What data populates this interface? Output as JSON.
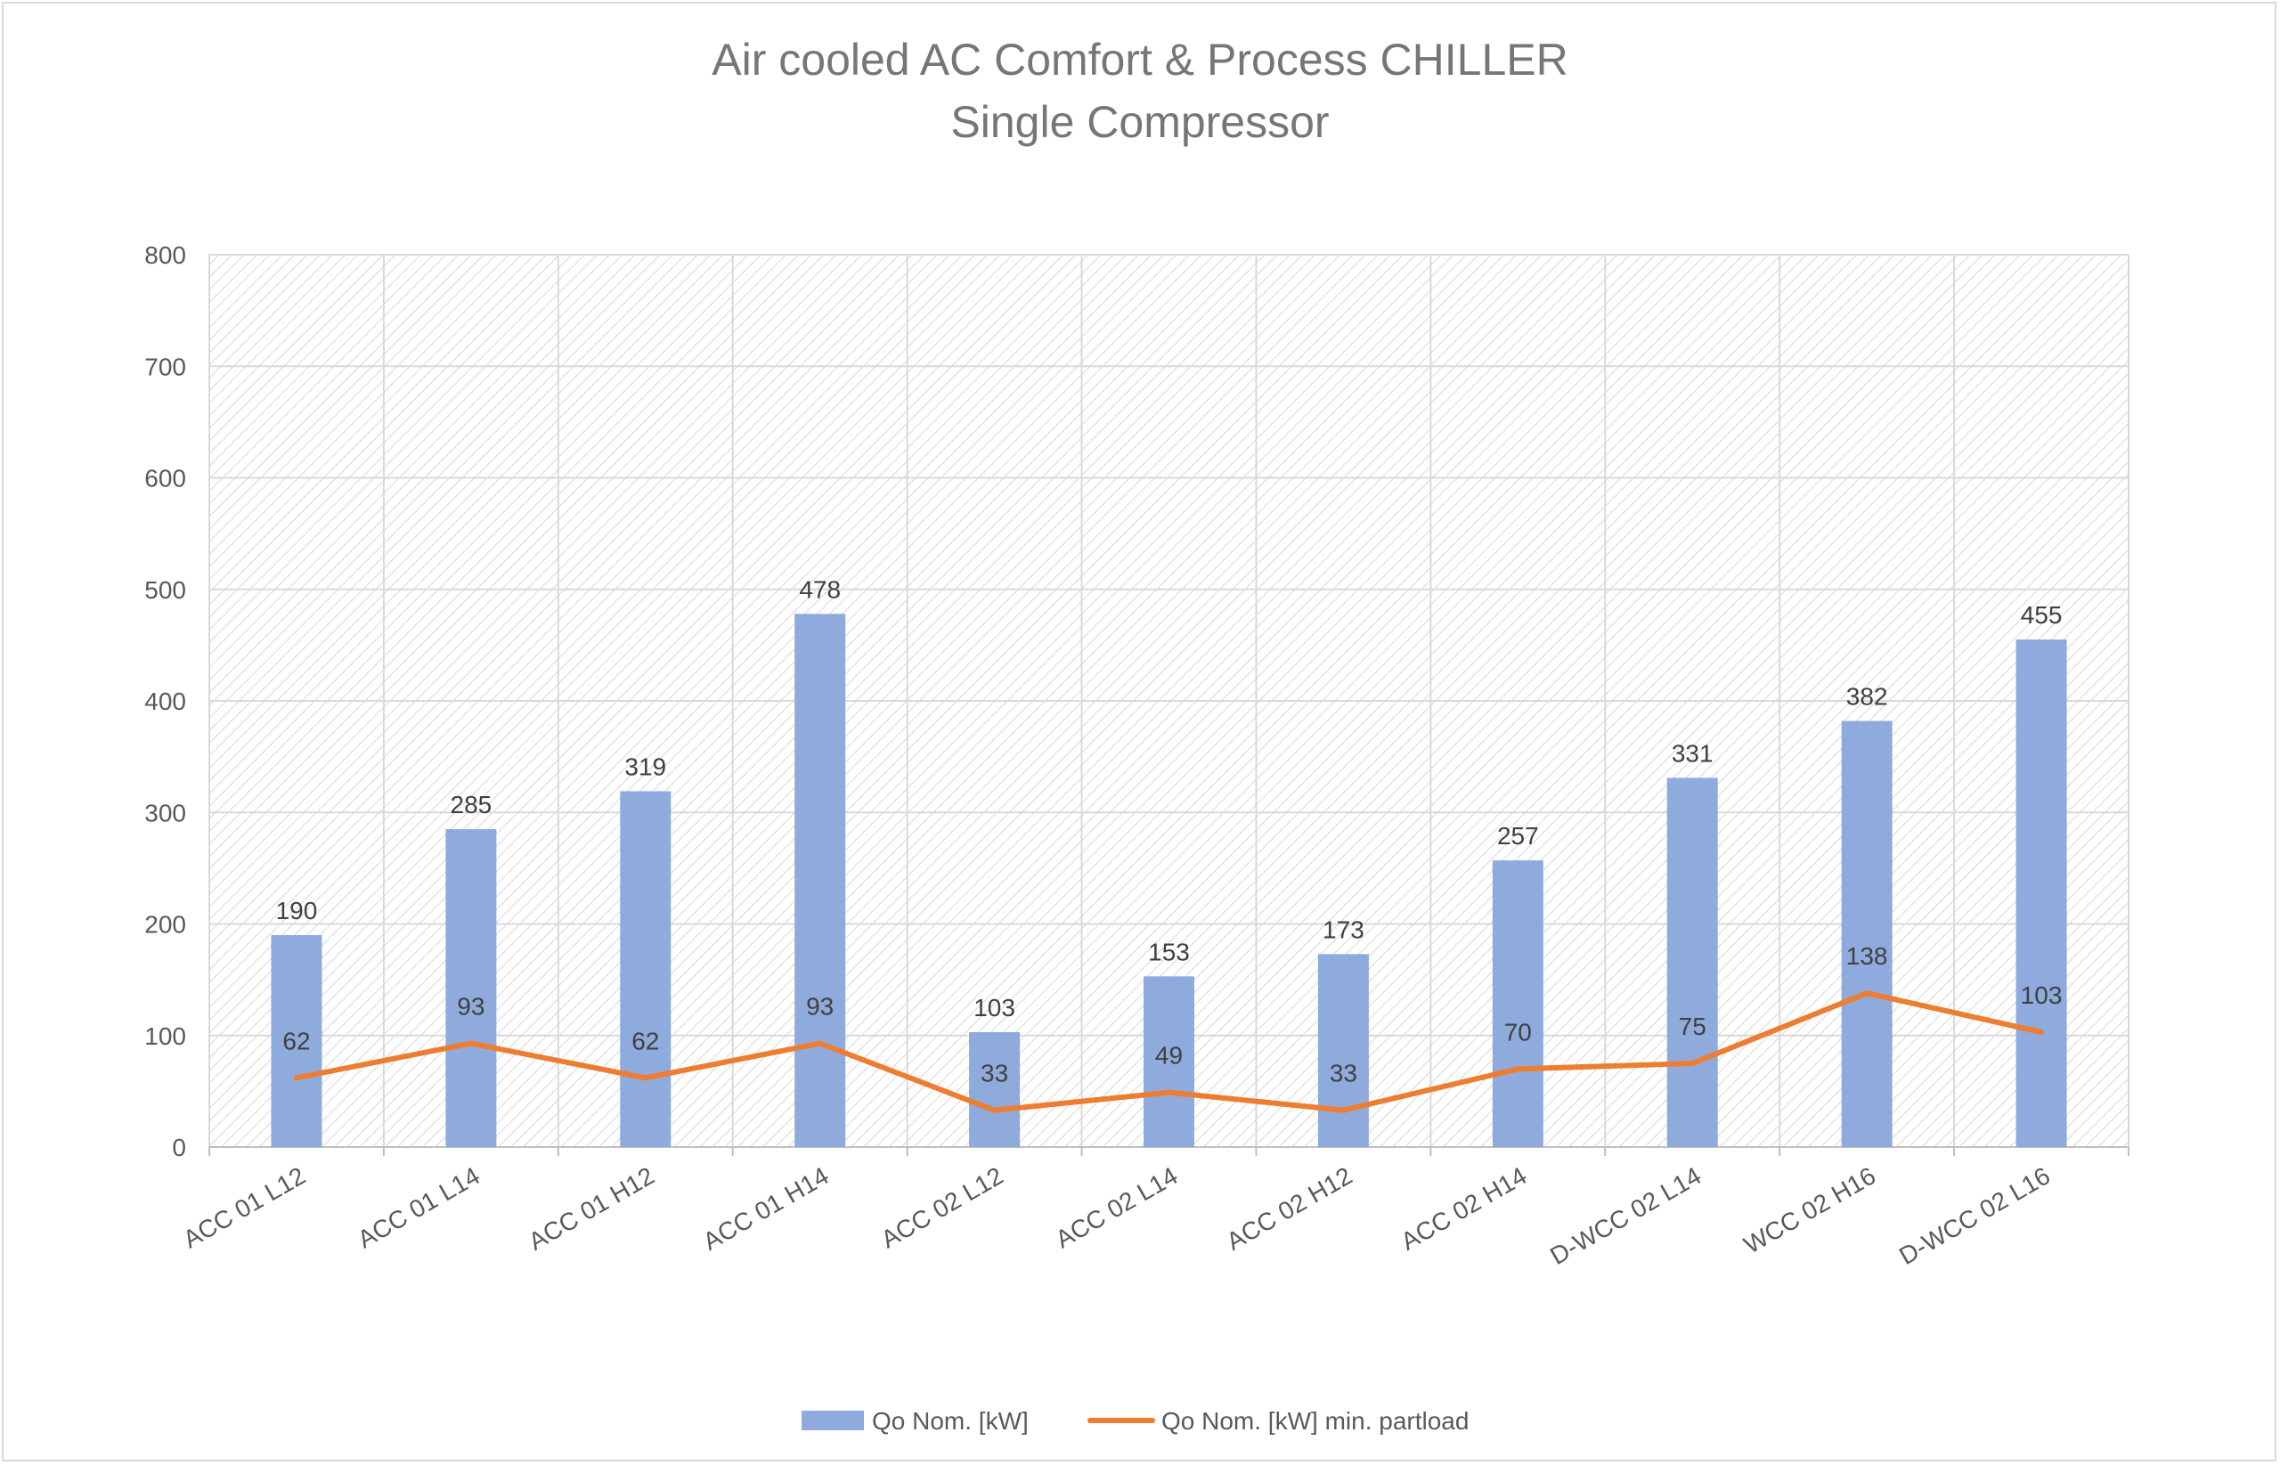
{
  "chart_data": {
    "type": "bar",
    "title": "Air cooled AC Comfort & Process CHILLER",
    "subtitle": "Single Compressor",
    "xlabel": "",
    "ylabel": "",
    "ylim": [
      0,
      800
    ],
    "yticks": [
      0,
      100,
      200,
      300,
      400,
      500,
      600,
      700,
      800
    ],
    "grid": true,
    "legend_position": "bottom",
    "categories": [
      "ACC 01 L12",
      "ACC 01 L14",
      "ACC 01 H12",
      "ACC 01 H14",
      "ACC 02 L12",
      "ACC 02 L14",
      "ACC 02 H12",
      "ACC 02 H14",
      "D-WCC 02 L14",
      "WCC 02 H16",
      "D-WCC 02 L16"
    ],
    "series": [
      {
        "name": "Qo Nom. [kW]",
        "type": "bar",
        "color": "#8faadc",
        "values": [
          190,
          285,
          319,
          478,
          103,
          153,
          173,
          257,
          331,
          382,
          455
        ]
      },
      {
        "name": "Qo Nom. [kW] min. partload",
        "type": "line",
        "color": "#ed7d31",
        "values": [
          62,
          93,
          62,
          93,
          33,
          49,
          33,
          70,
          75,
          138,
          103
        ]
      }
    ]
  }
}
